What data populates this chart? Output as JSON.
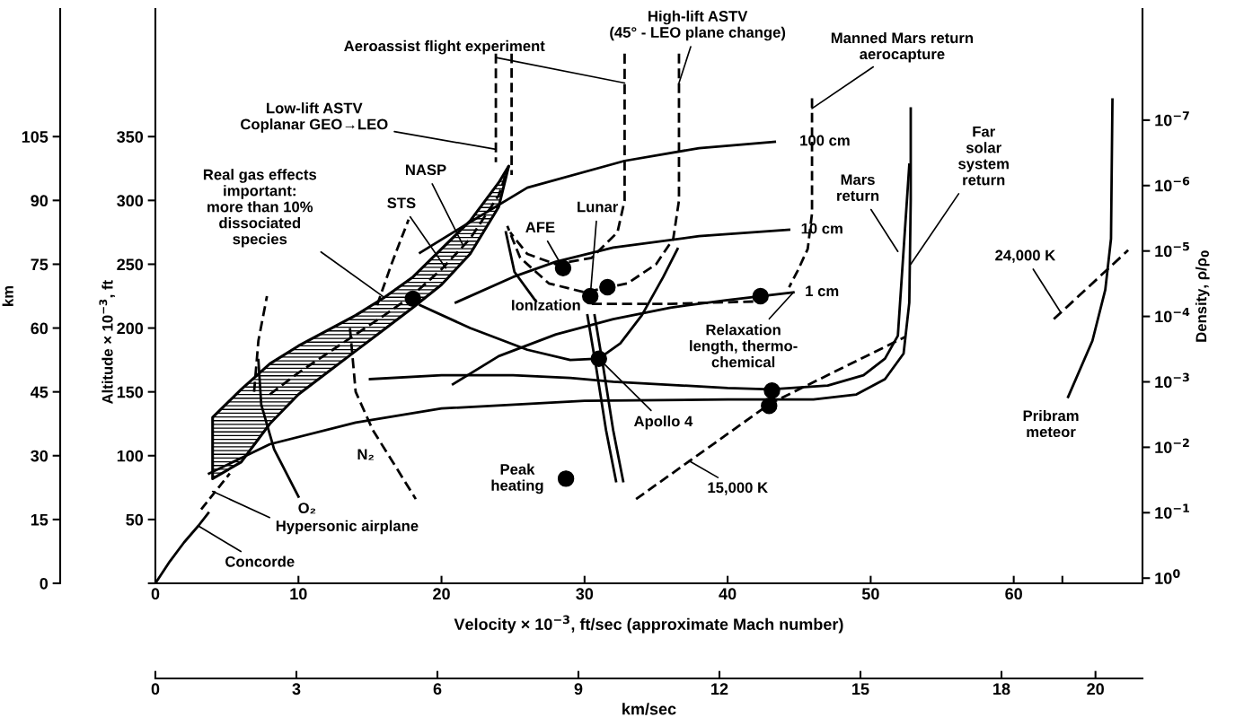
{
  "chart_data": {
    "type": "line",
    "xlabel": "Velocity × 10$^{−3}$, ft/sec (approximate Mach number)",
    "ylabel": "Altitude × 10$^{−3}$, ft",
    "y3label": "km",
    "y2label": "Density, ρ/ρ$_{0}$",
    "x2label": "km/sec",
    "xlim": [
      0,
      69
    ],
    "xticks": [
      0,
      10,
      20,
      30,
      40,
      50,
      60,
      {
        "value": 63.4,
        "label": null
      }
    ],
    "x2lim": [
      0,
      21.0
    ],
    "x2ticks": [
      0,
      3,
      6,
      9,
      12,
      15,
      18,
      20
    ],
    "ylim": [
      0,
      450
    ],
    "yticks": [
      {
        "value": 0,
        "label": null
      },
      50,
      100,
      150,
      200,
      250,
      300,
      350
    ],
    "y3lim": [
      0,
      135
    ],
    "y3ticks": [
      0,
      15,
      30,
      45,
      60,
      75,
      90,
      105
    ],
    "y2lim": [
      1.2,
      2e-09
    ],
    "y2ticks": [
      {
        "value": 1,
        "label": "10$^{0}$"
      },
      {
        "value": 0.1,
        "label": "10$^{−1}$"
      },
      {
        "value": 0.01,
        "label": "10$^{−2}$"
      },
      {
        "value": 0.001,
        "label": "10$^{−3}$"
      },
      {
        "value": 0.0001,
        "label": "10$^{−4}$"
      },
      {
        "value": 1e-05,
        "label": "10$^{−5}$"
      },
      {
        "value": 1e-06,
        "label": "10$^{−6}$"
      },
      {
        "value": 1e-07,
        "label": "10$^{−7}$"
      }
    ],
    "log": "y2",
    "grid": false,
    "legend": false,
    "series": [
      {
        "color": "#000000",
        "x": [
          0,
          1,
          2,
          3,
          3.7
        ],
        "values": [
          0,
          17,
          32,
          45,
          55
        ]
      },
      {
        "color": "#000000",
        "line_style": "dashed",
        "x": [
          3.2,
          4.2,
          5.2
        ],
        "values": [
          58,
          72,
          86
        ]
      },
      {
        "color": "#000000",
        "line_style": "dashed",
        "x": [
          4,
          6,
          8,
          10,
          12,
          14,
          16,
          18,
          20,
          22,
          24,
          24.7
        ],
        "values": [
          null,
          null,
          148,
          165,
          180,
          195,
          210,
          226,
          246,
          270,
          304,
          327
        ],
        "lower": [
          82,
          95,
          125,
          148,
          165,
          182,
          199,
          216,
          234,
          258,
          295,
          327
        ],
        "upper": [
          130,
          152,
          172,
          186,
          198,
          210,
          224,
          240,
          262,
          284,
          314,
          327
        ]
      },
      {
        "color": "#000000",
        "x": [
          3.75,
          8,
          14,
          20,
          30,
          40,
          46,
          49,
          51,
          52.3,
          52.7,
          52.8,
          52.8
        ],
        "values": [
          86,
          109,
          126,
          137,
          143,
          144,
          144,
          148,
          160,
          180,
          220,
          300,
          372
        ]
      },
      {
        "color": "#000000",
        "x": [
          15,
          20,
          25,
          29,
          32,
          40,
          43,
          47,
          49.5,
          51.0,
          51.9,
          52.7
        ],
        "values": [
          160,
          163,
          163,
          161,
          158,
          153,
          152,
          155,
          163,
          176,
          194,
          328
        ]
      },
      {
        "color": "#000000",
        "x": [
          18.5,
          22,
          26,
          32.8,
          38,
          43.3
        ],
        "values": [
          259,
          283,
          310,
          331,
          341,
          346
        ]
      },
      {
        "color": "#000000",
        "x": [
          21,
          25,
          28,
          32,
          38,
          44.3
        ],
        "values": [
          220,
          240,
          252,
          263,
          272,
          277
        ]
      },
      {
        "color": "#000000",
        "x": [
          20.8,
          24,
          28,
          32,
          36,
          40,
          44.6
        ],
        "values": [
          156,
          178,
          195,
          207,
          216,
          222,
          228
        ]
      },
      {
        "color": "#000000",
        "x": [
          18.5,
          22,
          26,
          29,
          31,
          32.5,
          34,
          35.5,
          36.5
        ],
        "values": [
          218,
          200,
          183,
          175,
          176,
          188,
          210,
          240,
          262
        ]
      },
      {
        "color": "#000000",
        "line_style": "dashed",
        "x": [
          33.6,
          43,
          52.4
        ],
        "values": [
          66,
          141,
          193
        ]
      },
      {
        "color": "#000000",
        "line_style": "dashed",
        "x": [
          62.8,
          68
        ],
        "values": [
          207,
          261
        ]
      },
      {
        "color": "#000000",
        "x": [
          63.8,
          65.5,
          66.4,
          66.8,
          66.9
        ],
        "values": [
          146,
          190,
          230,
          270,
          379
        ]
      },
      {
        "color": "#000000",
        "line_style": "dashed",
        "x": [
          45.9,
          45.9,
          45.6,
          44.9,
          44.3
        ],
        "values": [
          380,
          290,
          262,
          245,
          232
        ]
      },
      {
        "color": "#000000",
        "line_style": "dashed",
        "x": [
          30.5,
          36,
          42.5
        ],
        "values": [
          219,
          219,
          221
        ]
      },
      {
        "color": "#000000",
        "line_style": "dashed",
        "x": [
          32.8,
          32.8,
          32.3,
          30.5,
          28,
          26,
          24.8
        ],
        "values": [
          415,
          300,
          275,
          255,
          250,
          258,
          275
        ]
      },
      {
        "color": "#000000",
        "line_style": "dashed",
        "x": [
          36.6,
          36.6,
          36.2,
          35,
          33,
          30,
          27.5,
          25.5,
          24.6
        ],
        "values": [
          415,
          300,
          270,
          250,
          235,
          228,
          235,
          255,
          280
        ]
      },
      {
        "color": "#000000",
        "line_style": "dashed",
        "x": [
          23.8,
          23.8
        ],
        "values": [
          415,
          330
        ]
      },
      {
        "color": "#000000",
        "line_style": "dashed",
        "x": [
          24.9,
          24.9
        ],
        "values": [
          415,
          320
        ]
      },
      {
        "color": "#000000",
        "x": [
          7.2,
          7.4,
          8.3,
          10
        ],
        "values": [
          175,
          140,
          105,
          68
        ]
      },
      {
        "color": "#000000",
        "line_style": "dashed",
        "x": [
          13.6,
          14,
          15.2,
          16.6,
          18.2
        ],
        "values": [
          200,
          150,
          120,
          95,
          66
        ]
      },
      {
        "color": "#000000",
        "line_style": "dashed",
        "x": [
          6.9,
          7.2,
          7.8
        ],
        "values": [
          150,
          190,
          225
        ]
      },
      {
        "color": "#000000",
        "line_style": "dashed",
        "x": [
          15.5,
          16.5,
          17.7
        ],
        "values": [
          218,
          250,
          285
        ]
      },
      {
        "color": "#000000",
        "x": [
          24.5,
          25.1,
          26.6
        ],
        "values": [
          275,
          244,
          221
        ]
      },
      {
        "color": "#000000",
        "x": [
          30.2,
          30.8,
          31.5,
          32.2
        ],
        "values": [
          210,
          170,
          120,
          80
        ]
      },
      {
        "color": "#000000",
        "x": [
          30.7,
          31.3,
          32,
          32.7
        ],
        "values": [
          210,
          170,
          120,
          80
        ]
      },
      {
        "type": "scatter",
        "color": "#000000",
        "marker": "circle",
        "x": [
          18,
          28.5,
          30.4,
          31.6,
          42.3,
          31,
          43.1,
          42.9,
          28.7
        ],
        "values": [
          223,
          247,
          225,
          232,
          225,
          176,
          151,
          139,
          82
        ]
      }
    ],
    "annotations": [
      {
        "text": "High-lift ASTV\n(45° - LEO plane change)",
        "x": 36.6,
        "y": 392
      },
      {
        "text": "Aeroassist flight experiment",
        "x": 32.8,
        "y": 392
      },
      {
        "text": "Manned Mars return\naerocapture",
        "x": 45.9,
        "y": 372
      },
      {
        "text": "Low-lift ASTV\nCoplanar GEO→LEO",
        "x": 23.8,
        "y": 340
      },
      {
        "text": "Real gas effects\nimportant:\nmore than 10%\ndissociated\nspecies",
        "x": 16,
        "y": 224
      },
      {
        "text": "NASP",
        "x": 21.5,
        "y": 265
      },
      {
        "text": "STS",
        "x": 20.3,
        "y": 247
      },
      {
        "text": "AFE",
        "x": 28.5,
        "y": 247
      },
      {
        "text": "Lunar",
        "x": 30.4,
        "y": 225
      },
      "100 cm",
      "10 cm",
      "1 cm",
      {
        "text": "Mars\nreturn",
        "x": 51.9,
        "y": 260
      },
      {
        "text": "Far\nsolar\nsystem\nreturn",
        "x": 52.8,
        "y": 250
      },
      {
        "text": "24,000 K",
        "x": 63.3,
        "y": 212
      },
      "Ionization",
      {
        "text": "Relaxation\nlength, thermo-\nchemical",
        "x": 44.6,
        "y": 228
      },
      {
        "text": "Apollo 4",
        "x": 31.0,
        "y": 176
      },
      {
        "text": "15,000 K",
        "x": 37.3,
        "y": 96
      },
      "Pribram\nmeteor",
      "Peak\nheating",
      "O₂",
      "N₂",
      {
        "text": "Hypersonic airplane",
        "x": 4.0,
        "y": 72
      },
      {
        "text": "Concorde",
        "x": 3,
        "y": 45
      }
    ]
  }
}
